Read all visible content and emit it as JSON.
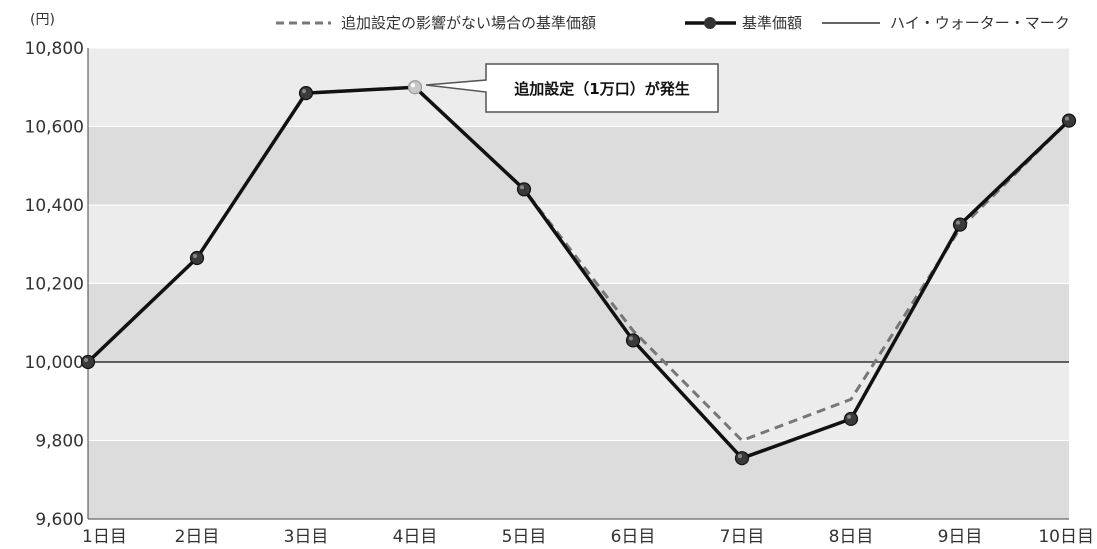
{
  "chart_data": {
    "type": "line",
    "unit_label": "(円)",
    "categories": [
      "1日目",
      "2日目",
      "3日目",
      "4日目",
      "5日目",
      "6日目",
      "7日目",
      "8日目",
      "9日目",
      "10日目"
    ],
    "ylim": [
      9600,
      10800
    ],
    "yticks": [
      9600,
      9800,
      10000,
      10200,
      10400,
      10600,
      10800
    ],
    "ytick_labels": [
      "9,600",
      "9,800",
      "10,000",
      "10,200",
      "10,400",
      "10,600",
      "10,800"
    ],
    "series": [
      {
        "name": "追加設定の影響がない場合の基準価額",
        "style": "dashed",
        "color": "#777777",
        "values": [
          10000,
          10265,
          10685,
          10700,
          10440,
          10080,
          9800,
          9905,
          10340,
          10615
        ]
      },
      {
        "name": "基準価額",
        "style": "solid-markers",
        "color": "#111111",
        "values": [
          10000,
          10265,
          10685,
          10700,
          10440,
          10055,
          9755,
          9855,
          10350,
          10615
        ]
      },
      {
        "name": "ハイ・ウォーター・マーク",
        "style": "thin",
        "color": "#333333",
        "values": [
          10000,
          10000,
          10000,
          10000,
          10000,
          10000,
          10000,
          10000,
          10000,
          10000
        ]
      }
    ],
    "highlight_point": {
      "index": 3,
      "color": "#c8c8c8"
    },
    "annotation": {
      "text": "追加設定（1万口）が発生",
      "point_index": 3
    },
    "bands": "alternating-gray",
    "legend_position": "top-right"
  }
}
